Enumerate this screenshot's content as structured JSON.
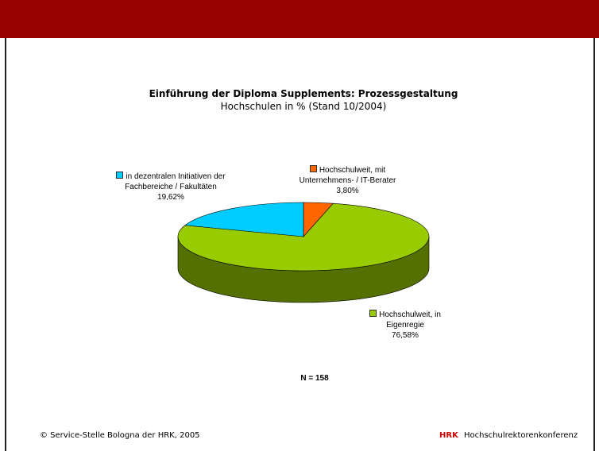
{
  "chart_data": {
    "type": "pie",
    "title": "Einführung der Diploma Supplements: Prozessgestaltung",
    "subtitle": "Hochschulen in % (Stand 10/2004)",
    "categories": [
      "Hochschulweit, mit\nUnternehmens- / IT-Berater",
      "Hochschulweit, in\nEigenregie",
      "in dezentralen Initiativen der\nFachbereiche / Fakultäten"
    ],
    "values": [
      3.8,
      76.58,
      19.62
    ],
    "value_labels": [
      "3,80%",
      "76,58%",
      "19,62%"
    ],
    "colors": [
      "#ff6600",
      "#99cc00",
      "#00ccff"
    ],
    "note": "N = 158"
  },
  "footer": {
    "copyright": "© Service-Stelle Bologna der HRK, 2005",
    "brand": "HRK",
    "organization": "Hochschulrektorenkonferenz"
  }
}
